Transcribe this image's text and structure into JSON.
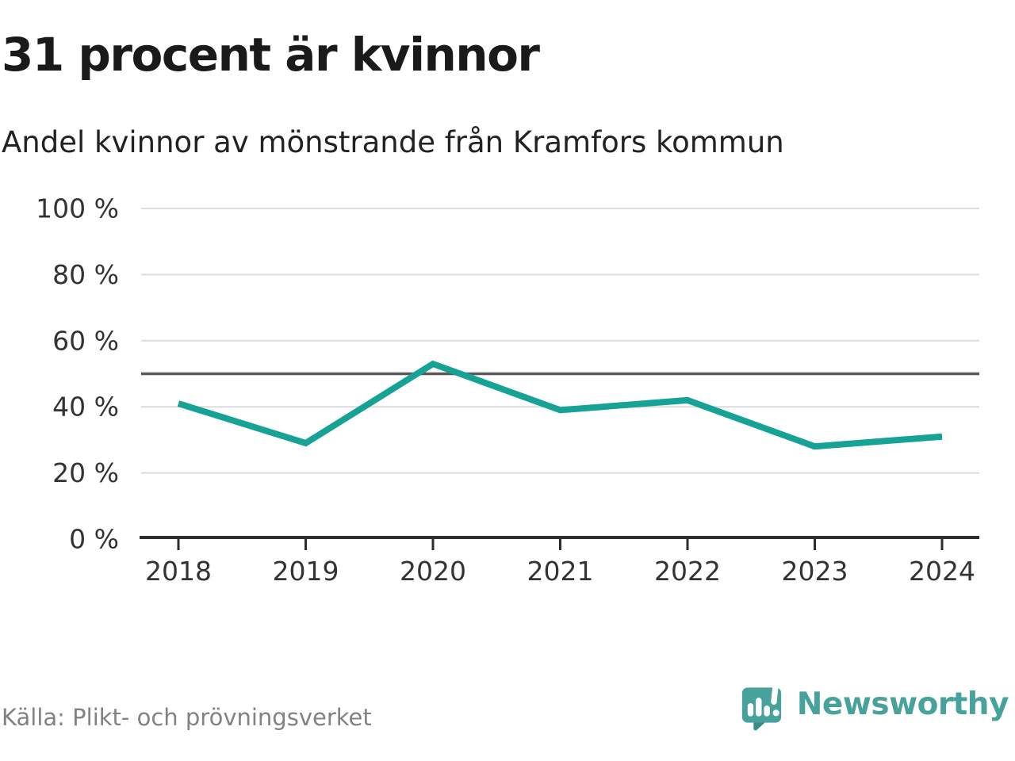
{
  "header": {
    "title": "31 procent är kvinnor",
    "subtitle": "Andel kvinnor av mönstrande från Kramfors kommun"
  },
  "chart_data": {
    "type": "line",
    "title": "31 procent är kvinnor",
    "subtitle": "Andel kvinnor av mönstrande från Kramfors kommun",
    "categories": [
      "2018",
      "2019",
      "2020",
      "2021",
      "2022",
      "2023",
      "2024"
    ],
    "series": [
      {
        "name": "Andel kvinnor av mönstrande",
        "values": [
          41,
          29,
          53,
          39,
          42,
          28,
          31
        ],
        "color": "#16a294"
      }
    ],
    "unit": "%",
    "ylim": [
      0,
      100
    ],
    "yticks": [
      {
        "value": 0,
        "label": "0 %"
      },
      {
        "value": 20,
        "label": "20 %"
      },
      {
        "value": 40,
        "label": "40 %"
      },
      {
        "value": 60,
        "label": "60 %"
      },
      {
        "value": 80,
        "label": "80 %"
      },
      {
        "value": 100,
        "label": "100 %"
      }
    ],
    "reference_line": {
      "value": 50,
      "color": "#595959"
    },
    "grid": true,
    "legend": false,
    "gridline_color": "#dcdcdc",
    "axis_color": "#2e2e2e",
    "tick_label_color": "#333333"
  },
  "footer": {
    "source": "Källa: Plikt- och prövningsverket",
    "logo_text": "Newsworthy"
  },
  "colors": {
    "accent_teal": "#16a294",
    "logo_teal": "#46a29b",
    "logo_teal_dark": "#3a8d86"
  }
}
